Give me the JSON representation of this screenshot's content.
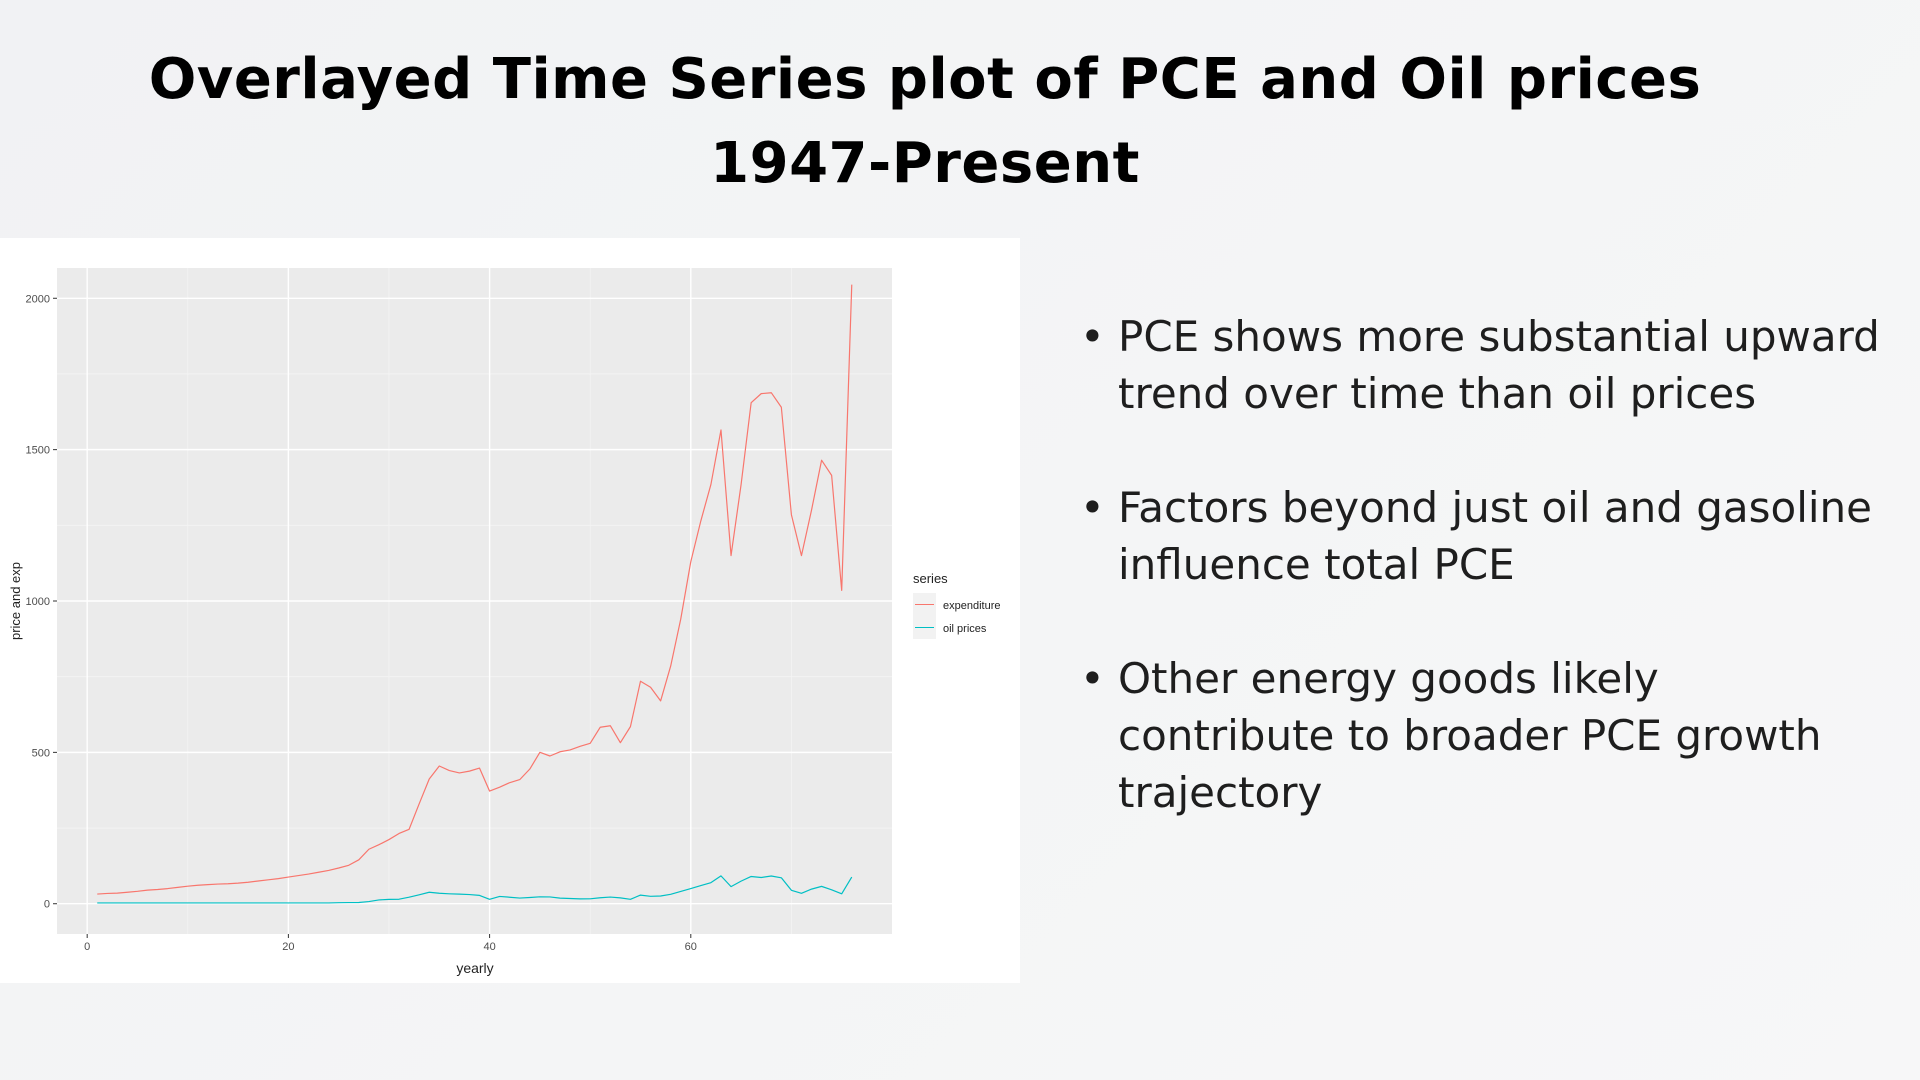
{
  "slide": {
    "title_line1": "Overlayed Time Series plot of PCE and Oil prices",
    "title_line2": "1947-Present",
    "bullets": [
      "PCE shows more substantial upward trend over time than oil prices",
      "Factors beyond just oil and gasoline influence total PCE",
      "Other energy goods likely contribute to broader PCE growth trajectory"
    ]
  },
  "chart_data": {
    "type": "line",
    "title": "",
    "xlabel": "yearly",
    "ylabel": "price and exp",
    "xlim": [
      -3,
      80
    ],
    "ylim": [
      -100,
      2100
    ],
    "x_ticks": [
      0,
      20,
      40,
      60
    ],
    "y_ticks": [
      0,
      500,
      1000,
      1500,
      2000
    ],
    "grid": true,
    "legend": {
      "title": "series",
      "position": "right"
    },
    "series": [
      {
        "name": "expenditure",
        "color": "#F8766D",
        "x": [
          1,
          2,
          3,
          4,
          5,
          6,
          7,
          8,
          9,
          10,
          11,
          12,
          13,
          14,
          15,
          16,
          17,
          18,
          19,
          20,
          21,
          22,
          23,
          24,
          25,
          26,
          27,
          28,
          29,
          30,
          31,
          32,
          33,
          34,
          35,
          36,
          37,
          38,
          39,
          40,
          41,
          42,
          43,
          44,
          45,
          46,
          47,
          48,
          49,
          50,
          51,
          52,
          53,
          54,
          55,
          56,
          57,
          58,
          59,
          60,
          61,
          62,
          63,
          64,
          65,
          66,
          67,
          68,
          69,
          70,
          71,
          72,
          73,
          74,
          75,
          76
        ],
        "values": [
          32,
          34,
          35,
          38,
          41,
          45,
          47,
          50,
          54,
          58,
          61,
          63,
          65,
          66,
          68,
          71,
          75,
          79,
          83,
          88,
          93,
          98,
          104,
          110,
          118,
          127,
          145,
          180,
          195,
          212,
          232,
          246,
          330,
          412,
          455,
          440,
          432,
          438,
          448,
          372,
          385,
          400,
          410,
          445,
          500,
          488,
          502,
          508,
          520,
          530,
          583,
          588,
          532,
          585,
          735,
          715,
          670,
          785,
          940,
          1130,
          1265,
          1385,
          1565,
          1150,
          1385,
          1655,
          1685,
          1688,
          1640,
          1285,
          1150,
          1300,
          1465,
          1415,
          1035,
          2045
        ]
      },
      {
        "name": "oil prices",
        "color": "#00BFC4",
        "x": [
          1,
          2,
          3,
          4,
          5,
          6,
          7,
          8,
          9,
          10,
          11,
          12,
          13,
          14,
          15,
          16,
          17,
          18,
          19,
          20,
          21,
          22,
          23,
          24,
          25,
          26,
          27,
          28,
          29,
          30,
          31,
          32,
          33,
          34,
          35,
          36,
          37,
          38,
          39,
          40,
          41,
          42,
          43,
          44,
          45,
          46,
          47,
          48,
          49,
          50,
          51,
          52,
          53,
          54,
          55,
          56,
          57,
          58,
          59,
          60,
          61,
          62,
          63,
          64,
          65,
          66,
          67,
          68,
          69,
          70,
          71,
          72,
          73,
          74,
          75,
          76
        ],
        "values": [
          2.6,
          2.6,
          2.6,
          2.6,
          2.6,
          2.6,
          2.6,
          2.6,
          2.6,
          2.6,
          2.6,
          2.6,
          2.6,
          2.6,
          2.6,
          2.6,
          2.6,
          2.6,
          2.6,
          2.6,
          2.6,
          2.6,
          2.6,
          2.6,
          3.4,
          3.9,
          4.1,
          7.2,
          12.5,
          14.3,
          14.9,
          21.6,
          29.5,
          37.9,
          34.7,
          32.8,
          31.6,
          30.2,
          27.5,
          14.6,
          24.1,
          21.5,
          18.7,
          20.6,
          22.9,
          22.4,
          18.6,
          17.2,
          16.1,
          16.2,
          19.7,
          22.1,
          19.3,
          14.6,
          28.5,
          24.5,
          25.5,
          31.1,
          40.5,
          50.0,
          60.0,
          69.6,
          92.0,
          56.4,
          74.7,
          90.0,
          86.7,
          91.6,
          85.6,
          44.4,
          34.5,
          48.3,
          57.3,
          46.1,
          32.8,
          88.0
        ]
      }
    ]
  }
}
